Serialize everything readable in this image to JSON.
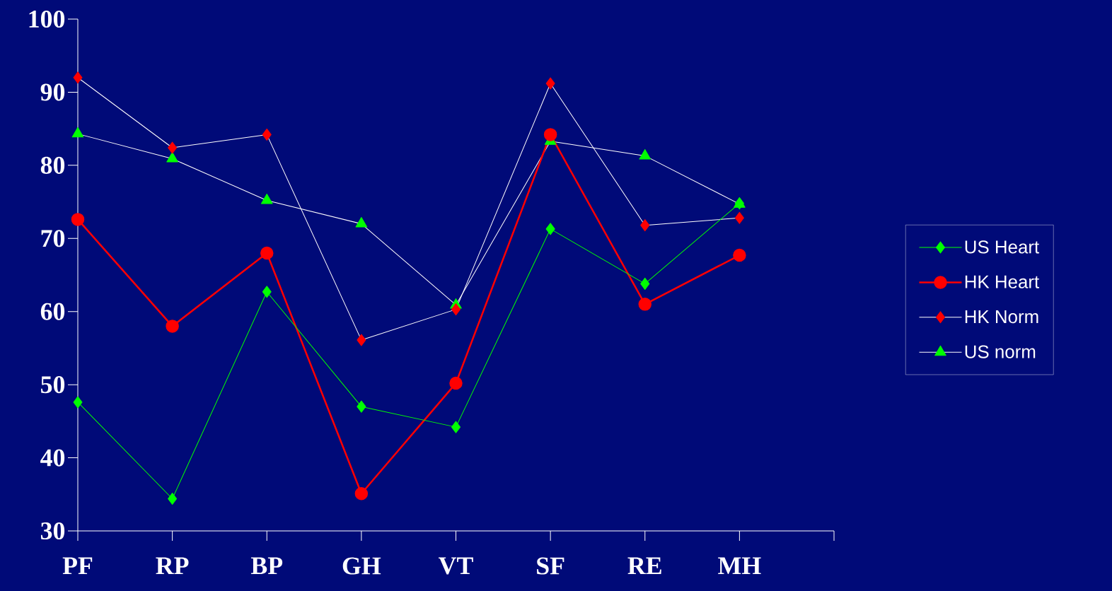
{
  "chart_data": {
    "type": "line",
    "categories": [
      "PF",
      "RP",
      "BP",
      "GH",
      "VT",
      "SF",
      "RE",
      "MH",
      null
    ],
    "ylim": [
      30,
      100
    ],
    "yticks": [
      30,
      40,
      50,
      60,
      70,
      80,
      90,
      100
    ],
    "grid": false,
    "legend": "right",
    "series": [
      {
        "name": "US Heart",
        "color": "#00ff00",
        "marker": "diamond",
        "values": [
          47.6,
          34.4,
          62.7,
          47.0,
          44.2,
          71.3,
          63.8,
          74.8,
          null
        ]
      },
      {
        "name": "HK Heart",
        "color": "#ff0000",
        "marker": "circle",
        "values": [
          72.6,
          58.0,
          68.0,
          35.1,
          50.2,
          84.2,
          61.0,
          67.7,
          null
        ]
      },
      {
        "name": "HK Norm",
        "color": "#ffffff",
        "colors": [
          "#ff0000",
          "#ff0000",
          "#ff0000",
          "#ff0000",
          "#ff0000",
          "#ff0000",
          "#ff0000",
          "#ff0000",
          null
        ],
        "marker": "diamond",
        "values": [
          92.0,
          82.4,
          84.2,
          56.1,
          60.3,
          91.2,
          71.8,
          72.8,
          null
        ]
      },
      {
        "name": "US norm",
        "color": "#ffffff",
        "colors": [
          "#00ff00",
          "#00ff00",
          "#00ff00",
          "#00ff00",
          "#00ff00",
          "#00ff00",
          "#00ff00",
          "#00ff00",
          null
        ],
        "marker": "triangle",
        "values": [
          84.3,
          80.9,
          75.2,
          72.0,
          60.9,
          83.3,
          81.3,
          74.7,
          null
        ]
      }
    ]
  }
}
